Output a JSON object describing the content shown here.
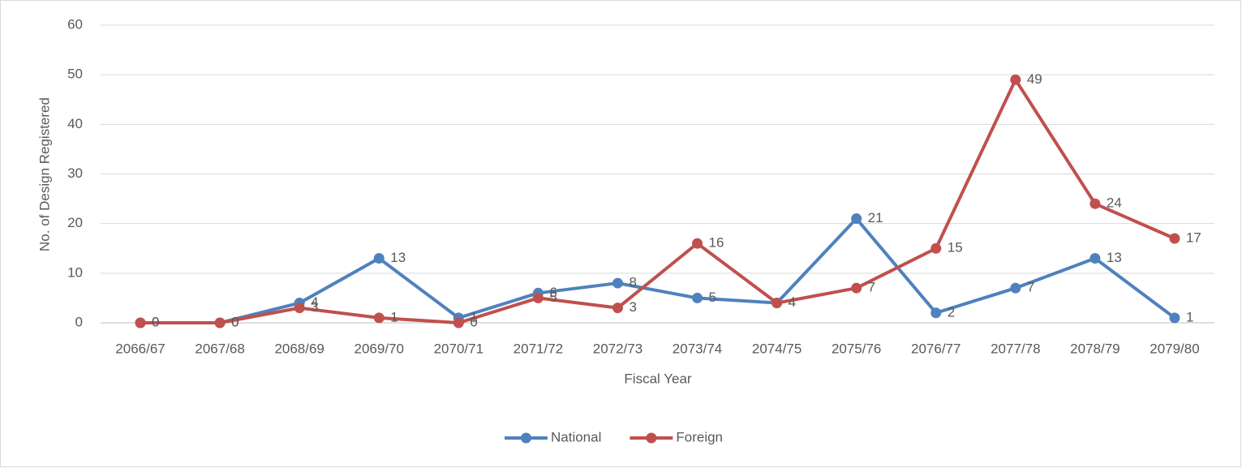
{
  "chart_data": {
    "type": "line",
    "x_label": "Fiscal Year",
    "y_label": "No. of Design Registered",
    "categories": [
      "2066/67",
      "2067/68",
      "2068/69",
      "2069/70",
      "2070/71",
      "2071/72",
      "2072/73",
      "2073/74",
      "2074/75",
      "2075/76",
      "2076/77",
      "2077/78",
      "2078/79",
      "2079/80"
    ],
    "series": [
      {
        "name": "National",
        "color": "#4f81bd",
        "values": [
          0,
          0,
          4,
          13,
          1,
          6,
          8,
          5,
          4,
          21,
          2,
          7,
          13,
          1
        ]
      },
      {
        "name": "Foreign",
        "color": "#c0504d",
        "values": [
          0,
          0,
          3,
          1,
          0,
          5,
          3,
          16,
          4,
          7,
          15,
          49,
          24,
          17
        ]
      }
    ],
    "ylim": [
      0,
      60
    ],
    "yticks": [
      0,
      10,
      20,
      30,
      40,
      50,
      60
    ],
    "grid": true,
    "legend": "bottom",
    "data_labels": true
  }
}
